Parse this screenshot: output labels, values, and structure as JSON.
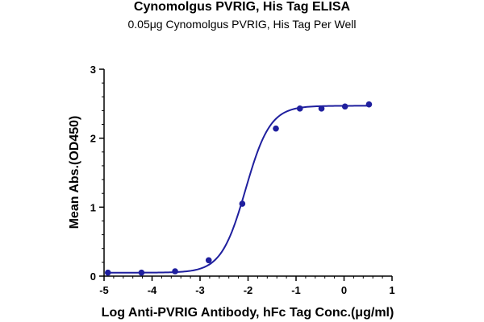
{
  "chart_data": {
    "type": "line",
    "title": "Cynomolgus PVRIG, His Tag ELISA",
    "subtitle": "0.05μg Cynomolgus PVRIG, His Tag Per Well",
    "xlabel": "Log Anti-PVRIG Antibody, hFc Tag Conc.(μg/ml)",
    "ylabel": "Mean Abs.(OD450)",
    "xlim": [
      -5,
      1
    ],
    "ylim": [
      0,
      3
    ],
    "x_ticks": [
      -5,
      -4,
      -3,
      -2,
      -1,
      0,
      1
    ],
    "y_ticks": [
      0,
      1,
      2,
      3
    ],
    "grid": false,
    "series_color": "#1f1f9e",
    "points": {
      "x": [
        -4.92,
        -4.22,
        -3.52,
        -2.82,
        -2.12,
        -1.42,
        -0.92,
        -0.47,
        0.02,
        0.52
      ],
      "y": [
        0.05,
        0.05,
        0.07,
        0.23,
        1.05,
        2.14,
        2.43,
        2.43,
        2.46,
        2.49
      ]
    },
    "fit_curve": {
      "model": "4PL",
      "bottom": 0.05,
      "top": 2.47,
      "log_ec50": -2.05,
      "hill_slope": 1.7
    }
  }
}
